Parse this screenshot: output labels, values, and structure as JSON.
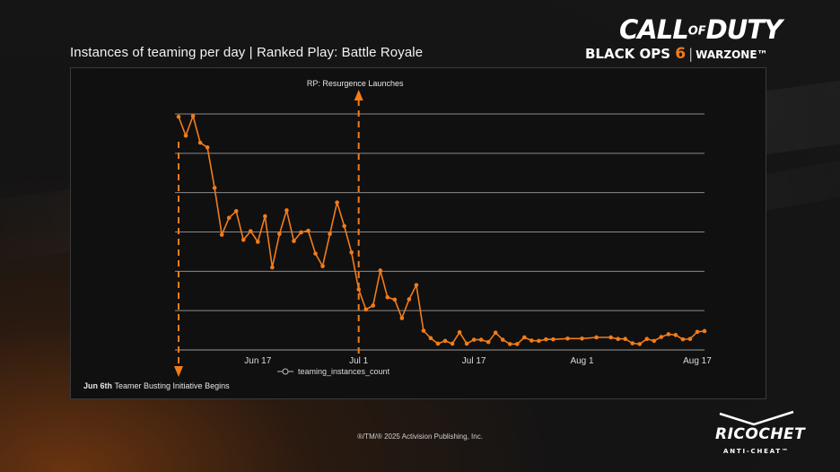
{
  "title": "Instances of teaming per day | Ranked Play: Battle Royale",
  "logo": {
    "line1_a": "CALL",
    "line1_of": "OF",
    "line1_b": "DUTY",
    "black_ops": "BLACK OPS",
    "six": "6",
    "warzone": "WARZONE™"
  },
  "footer": "®/TM/® 2025 Activision Publishing, Inc.",
  "brand": {
    "name": "RICOCHET",
    "tagline": "ANTI-CHEAT™"
  },
  "colors": {
    "accent": "#f27c1a",
    "panel": "#101010",
    "grid": "#8a8a8a"
  },
  "chart_data": {
    "type": "line",
    "title": "Instances of teaming per day | Ranked Play: Battle Royale",
    "xlabel": "",
    "ylabel": "",
    "legend": "teaming_instances_count",
    "legend_position": "bottom-center",
    "grid": "horizontal",
    "x_ticks": [
      "Jun 17",
      "Jul 1",
      "Jul 17",
      "Aug 1",
      "Aug 17"
    ],
    "x_tick_days": [
      11,
      25,
      41,
      56,
      72
    ],
    "x_range_days": [
      0,
      73
    ],
    "y_range": [
      0,
      6
    ],
    "series": [
      {
        "name": "teaming_instances_count",
        "x_days": [
          0,
          1,
          2,
          3,
          4,
          5,
          6,
          7,
          8,
          9,
          10,
          11,
          12,
          13,
          14,
          15,
          16,
          17,
          18,
          19,
          20,
          21,
          22,
          23,
          24,
          25,
          26,
          27,
          28,
          29,
          30,
          31,
          32,
          33,
          34,
          35,
          36,
          37,
          38,
          39,
          40,
          41,
          42,
          43,
          44,
          45,
          46,
          47,
          48,
          49,
          50,
          51,
          52,
          54,
          56,
          58,
          60,
          61,
          62,
          63,
          64,
          65,
          66,
          67,
          68,
          69,
          70,
          71,
          72,
          73
        ],
        "values": [
          5.93,
          5.45,
          5.95,
          5.27,
          5.15,
          4.12,
          2.93,
          3.36,
          3.53,
          2.8,
          3.02,
          2.75,
          3.4,
          2.1,
          2.95,
          3.55,
          2.77,
          2.99,
          3.03,
          2.45,
          2.13,
          2.95,
          3.75,
          3.15,
          2.48,
          1.54,
          1.03,
          1.13,
          2.02,
          1.34,
          1.28,
          0.81,
          1.29,
          1.65,
          0.49,
          0.3,
          0.16,
          0.23,
          0.16,
          0.45,
          0.16,
          0.26,
          0.26,
          0.2,
          0.44,
          0.26,
          0.15,
          0.15,
          0.32,
          0.24,
          0.23,
          0.27,
          0.27,
          0.29,
          0.29,
          0.32,
          0.32,
          0.28,
          0.28,
          0.17,
          0.15,
          0.28,
          0.23,
          0.33,
          0.4,
          0.38,
          0.27,
          0.28,
          0.46,
          0.48
        ]
      }
    ],
    "annotations": [
      {
        "label": "RP: Resurgence Launches",
        "x_day": 25
      },
      {
        "label_bold": "Jun 6th",
        "label": "Teamer Busting Initiative Begins",
        "x_day": 0
      }
    ]
  }
}
